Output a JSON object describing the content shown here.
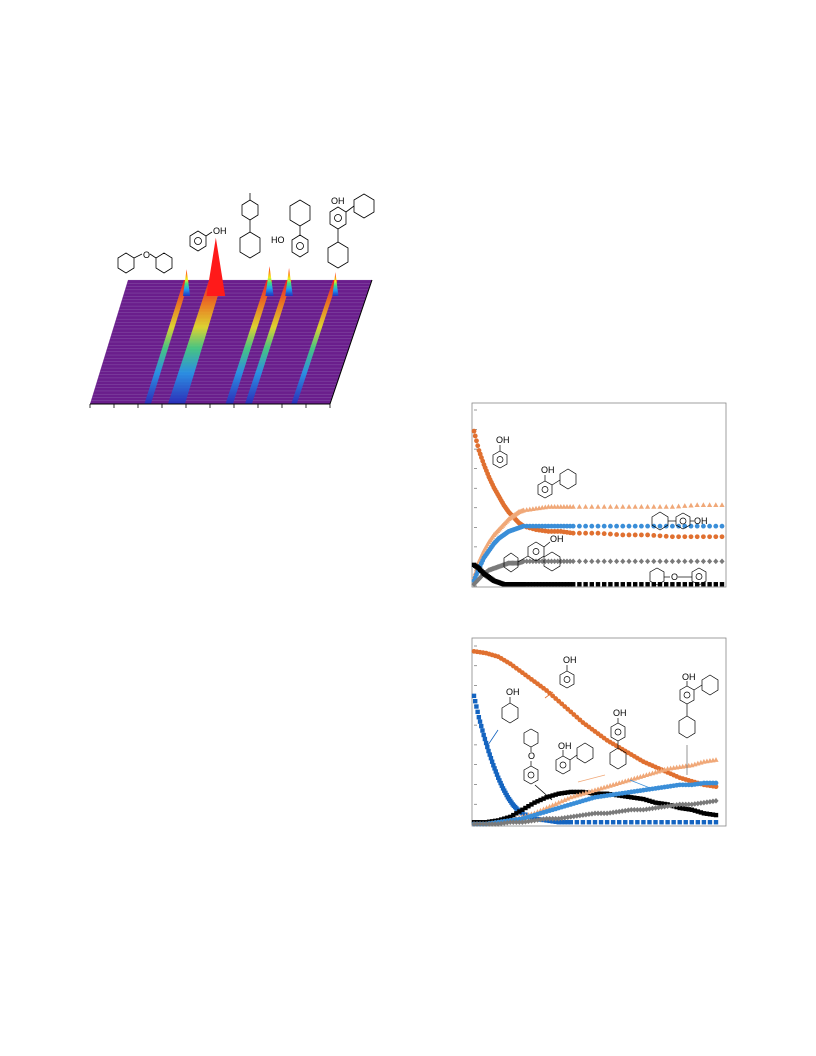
{
  "colors": {
    "background": "#ffffff",
    "waterfall_base": "#6a1e8c",
    "waterfall_peak": "#ff1a1a",
    "orange": "#e07030",
    "light_orange": "#f0a878",
    "blue": "#3a8ed8",
    "dark_blue": "#1464c0",
    "gray": "#7a7a7a",
    "black": "#000000"
  },
  "structure_labels": {
    "oh": "OH",
    "ho": "HO",
    "o": "O"
  },
  "chart_data": [
    {
      "type": "area",
      "description_label": "3D waterfall chromatogram",
      "peaks": [
        {
          "name": "cyclohexyl phenyl ether",
          "x": 0.24,
          "height": 0.25
        },
        {
          "name": "phenol",
          "x": 0.36,
          "height": 1.0
        },
        {
          "name": "4-cyclohexylphenol",
          "x": 0.58,
          "height": 0.32
        },
        {
          "name": "2-cyclohexylphenol",
          "x": 0.66,
          "height": 0.28
        },
        {
          "name": "2,4-dicyclohexylphenol",
          "x": 0.85,
          "height": 0.18
        }
      ],
      "axis_labels": {
        "x": "",
        "y": "",
        "z": ""
      }
    },
    {
      "type": "scatter",
      "xlim": [
        0,
        100
      ],
      "ylim": [
        0,
        1
      ],
      "series": [
        {
          "key": "phenol",
          "color": "#e07030",
          "marker": "circle",
          "x": [
            0,
            2,
            4,
            6,
            8,
            10,
            12,
            14,
            16,
            18,
            20,
            25,
            30,
            35,
            40,
            50,
            60,
            70,
            80,
            90,
            100
          ],
          "y": [
            0.88,
            0.77,
            0.69,
            0.62,
            0.56,
            0.51,
            0.46,
            0.42,
            0.39,
            0.36,
            0.34,
            0.32,
            0.31,
            0.31,
            0.3,
            0.3,
            0.29,
            0.29,
            0.28,
            0.28,
            0.28
          ]
        },
        {
          "key": "2-cyclohexylphenol",
          "color": "#f0a878",
          "marker": "triangle",
          "x": [
            0,
            2,
            4,
            6,
            8,
            10,
            12,
            14,
            16,
            18,
            20,
            25,
            30,
            35,
            40,
            50,
            60,
            70,
            80,
            90,
            100
          ],
          "y": [
            0.05,
            0.14,
            0.2,
            0.25,
            0.29,
            0.32,
            0.35,
            0.38,
            0.4,
            0.42,
            0.43,
            0.44,
            0.45,
            0.45,
            0.45,
            0.45,
            0.45,
            0.45,
            0.45,
            0.46,
            0.46
          ]
        },
        {
          "key": "4-cyclohexylphenol",
          "color": "#3a8ed8",
          "marker": "circle",
          "x": [
            0,
            2,
            4,
            6,
            8,
            10,
            12,
            14,
            16,
            18,
            20,
            25,
            30,
            35,
            40,
            50,
            60,
            70,
            80,
            90,
            100
          ],
          "y": [
            0.03,
            0.1,
            0.16,
            0.2,
            0.24,
            0.27,
            0.29,
            0.31,
            0.32,
            0.33,
            0.34,
            0.34,
            0.34,
            0.34,
            0.34,
            0.34,
            0.34,
            0.34,
            0.34,
            0.34,
            0.34
          ]
        },
        {
          "key": "2,4-dicyclohexylphenol",
          "color": "#7a7a7a",
          "marker": "diamond",
          "x": [
            0,
            2,
            4,
            6,
            8,
            10,
            12,
            14,
            16,
            18,
            20,
            25,
            30,
            35,
            40,
            50,
            60,
            70,
            80,
            90,
            100
          ],
          "y": [
            0.01,
            0.04,
            0.07,
            0.09,
            0.1,
            0.11,
            0.12,
            0.13,
            0.13,
            0.13,
            0.14,
            0.14,
            0.14,
            0.14,
            0.14,
            0.14,
            0.14,
            0.14,
            0.14,
            0.14,
            0.14
          ]
        },
        {
          "key": "cyclohexyl phenyl ether",
          "color": "#000000",
          "marker": "square",
          "x": [
            0,
            2,
            4,
            6,
            8,
            10,
            12,
            14,
            16,
            18,
            20,
            25,
            30,
            35,
            40,
            50,
            60,
            70,
            80,
            90,
            100
          ],
          "y": [
            0.12,
            0.1,
            0.07,
            0.05,
            0.03,
            0.02,
            0.01,
            0.01,
            0.01,
            0.01,
            0.01,
            0.01,
            0.01,
            0.01,
            0.01,
            0.01,
            0.01,
            0.01,
            0.01,
            0.01,
            0.01
          ]
        }
      ]
    },
    {
      "type": "scatter",
      "xlim": [
        0,
        100
      ],
      "ylim": [
        0,
        1
      ],
      "series": [
        {
          "key": "phenol",
          "color": "#e07030",
          "marker": "circle",
          "x": [
            0,
            5,
            10,
            15,
            20,
            25,
            30,
            35,
            40,
            45,
            50,
            55,
            60,
            65,
            70,
            75,
            80,
            85,
            90,
            95,
            100
          ],
          "y": [
            0.97,
            0.96,
            0.94,
            0.9,
            0.85,
            0.8,
            0.75,
            0.69,
            0.63,
            0.57,
            0.52,
            0.47,
            0.43,
            0.39,
            0.35,
            0.32,
            0.29,
            0.26,
            0.24,
            0.22,
            0.21
          ]
        },
        {
          "key": "cyclohexanol",
          "color": "#1464c0",
          "marker": "square",
          "x": [
            0,
            2,
            4,
            6,
            8,
            10,
            12,
            14,
            16,
            18,
            20,
            25,
            30,
            35,
            40,
            50,
            60,
            70,
            80,
            90,
            100
          ],
          "y": [
            0.72,
            0.6,
            0.5,
            0.41,
            0.33,
            0.26,
            0.2,
            0.15,
            0.11,
            0.08,
            0.06,
            0.03,
            0.02,
            0.01,
            0.01,
            0.01,
            0.01,
            0.01,
            0.01,
            0.01,
            0.01
          ]
        },
        {
          "key": "cyclohexyl phenyl ether",
          "color": "#000000",
          "marker": "square",
          "x": [
            0,
            5,
            10,
            15,
            20,
            25,
            30,
            35,
            40,
            45,
            50,
            55,
            60,
            65,
            70,
            75,
            80,
            85,
            90,
            95,
            100
          ],
          "y": [
            0.01,
            0.01,
            0.02,
            0.04,
            0.08,
            0.12,
            0.15,
            0.17,
            0.18,
            0.18,
            0.17,
            0.17,
            0.16,
            0.15,
            0.14,
            0.12,
            0.11,
            0.09,
            0.08,
            0.06,
            0.05
          ]
        },
        {
          "key": "2-cyclohexylphenol",
          "color": "#f0a878",
          "marker": "triangle",
          "x": [
            0,
            5,
            10,
            15,
            20,
            25,
            30,
            35,
            40,
            45,
            50,
            55,
            60,
            65,
            70,
            75,
            80,
            85,
            90,
            95,
            100
          ],
          "y": [
            0.0,
            0.0,
            0.01,
            0.02,
            0.04,
            0.06,
            0.09,
            0.12,
            0.15,
            0.17,
            0.19,
            0.21,
            0.23,
            0.25,
            0.27,
            0.29,
            0.31,
            0.32,
            0.33,
            0.35,
            0.36
          ]
        },
        {
          "key": "4-cyclohexylphenol",
          "color": "#3a8ed8",
          "marker": "circle",
          "x": [
            0,
            5,
            10,
            15,
            20,
            25,
            30,
            35,
            40,
            45,
            50,
            55,
            60,
            65,
            70,
            75,
            80,
            85,
            90,
            95,
            100
          ],
          "y": [
            0.0,
            0.0,
            0.01,
            0.02,
            0.03,
            0.05,
            0.07,
            0.09,
            0.11,
            0.13,
            0.15,
            0.16,
            0.17,
            0.18,
            0.19,
            0.2,
            0.21,
            0.22,
            0.22,
            0.23,
            0.23
          ]
        },
        {
          "key": "2,4-dicyclohexylphenol",
          "color": "#7a7a7a",
          "marker": "diamond",
          "x": [
            0,
            5,
            10,
            15,
            20,
            25,
            30,
            35,
            40,
            45,
            50,
            55,
            60,
            65,
            70,
            75,
            80,
            85,
            90,
            95,
            100
          ],
          "y": [
            0.0,
            0.0,
            0.0,
            0.01,
            0.01,
            0.02,
            0.03,
            0.03,
            0.04,
            0.05,
            0.06,
            0.06,
            0.07,
            0.08,
            0.08,
            0.09,
            0.1,
            0.11,
            0.11,
            0.12,
            0.13
          ]
        }
      ]
    }
  ]
}
